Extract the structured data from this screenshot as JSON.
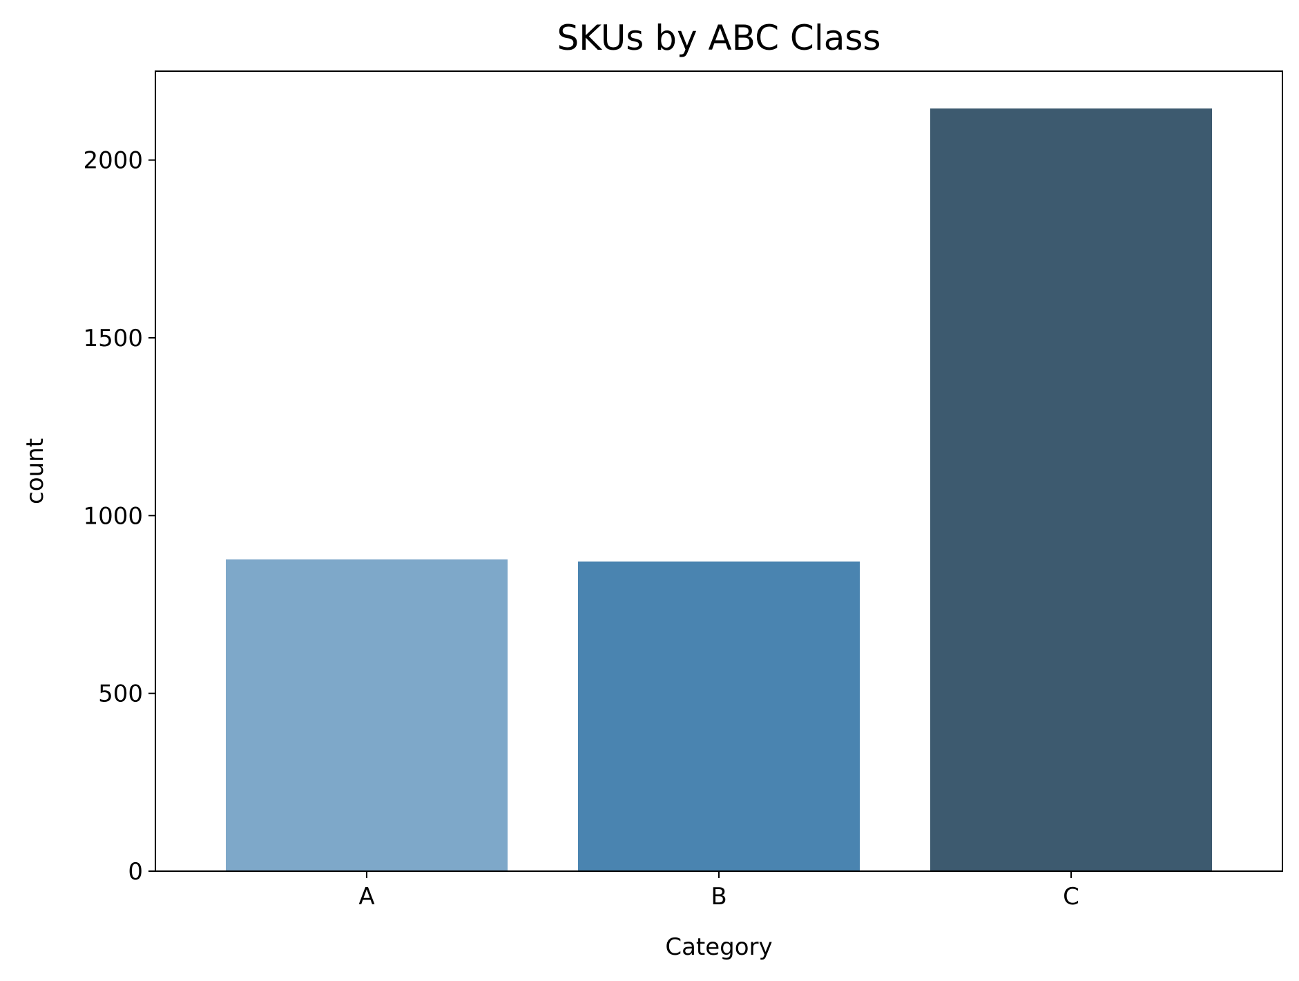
{
  "chart_data": {
    "type": "bar",
    "title": "SKUs by ABC Class",
    "xlabel": "Category",
    "ylabel": "count",
    "categories": [
      "A",
      "B",
      "C"
    ],
    "values": [
      877,
      871,
      2145
    ],
    "ylim": [
      0,
      2250
    ],
    "yticks": [
      0,
      500,
      1000,
      1500,
      2000
    ],
    "grid": false,
    "legend": "none",
    "colors": [
      "#7ea8c9",
      "#4a84b0",
      "#3d5a6f"
    ]
  }
}
